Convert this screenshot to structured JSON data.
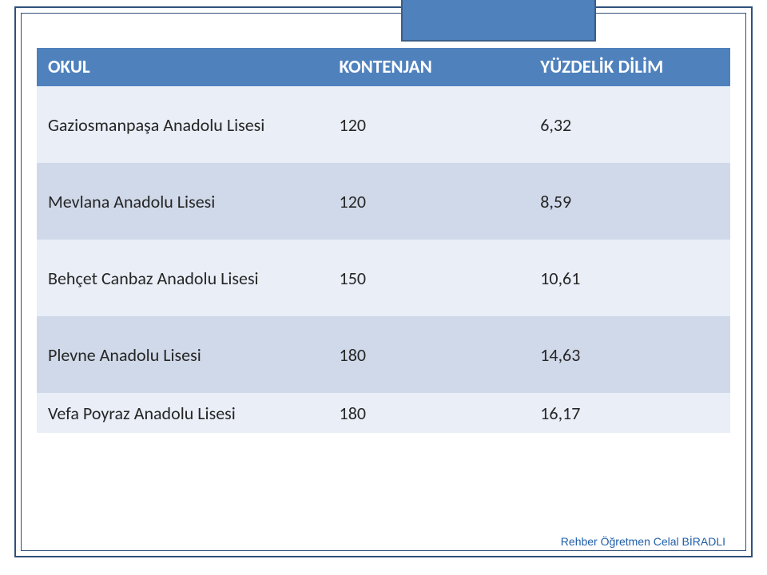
{
  "table": {
    "columns": [
      "OKUL",
      "KONTENJAN",
      "YÜZDELİK DİLİM"
    ],
    "column_widths_pct": [
      42,
      29,
      29
    ],
    "header_bg": "#4f81bd",
    "header_fg": "#ffffff",
    "header_fontsize": 23,
    "header_fontweight": "bold",
    "cell_fg": "#262626",
    "cell_fontsize": 22,
    "band_light": "#e9eef7",
    "band_dark": "#d0d9e9",
    "rows": [
      {
        "cells": [
          "Gaziosmanpaşa Anadolu Lisesi",
          "120",
          "6,32"
        ],
        "band": "light",
        "height": "tall"
      },
      {
        "cells": [
          "Mevlana Anadolu Lisesi",
          "120",
          "8,59"
        ],
        "band": "dark",
        "height": "tall"
      },
      {
        "cells": [
          "Behçet Canbaz Anadolu Lisesi",
          "150",
          "10,61"
        ],
        "band": "light",
        "height": "tall"
      },
      {
        "cells": [
          "Plevne Anadolu Lisesi",
          "180",
          "14,63"
        ],
        "band": "dark",
        "height": "tall"
      },
      {
        "cells": [
          "Vefa Poyraz Anadolu Lisesi",
          "180",
          "16,17"
        ],
        "band": "light",
        "height": "short"
      }
    ]
  },
  "decorations": {
    "frame_border_color": "#30507a",
    "top_box_bg": "#4f81bd",
    "top_box_border": "#395e89"
  },
  "footer": {
    "credit": "Rehber Öğretmen Celal BİRADLI",
    "color": "#1f5ea8",
    "fontsize": 14
  }
}
